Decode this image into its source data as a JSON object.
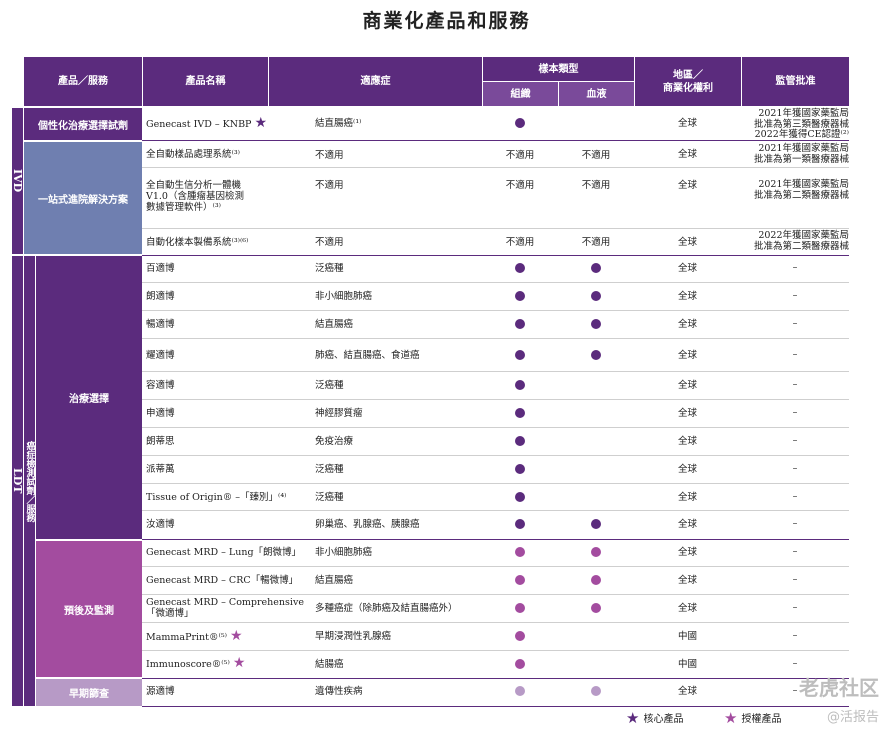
{
  "title": "商業化產品和服務",
  "headers": {
    "product_service": "產品／服務",
    "product_name": "產品名稱",
    "indication": "適應症",
    "sample_type": "樣本類型",
    "tissue": "組織",
    "blood": "血液",
    "region_line1": "地區／",
    "region_line2": "商業化權利",
    "approval": "監管批准"
  },
  "categories": {
    "ivd": "IVD",
    "ldt": "LDT",
    "ldt_sub": "癌症檢測試劑／服務",
    "personalized": "個性化治療選擇試劑",
    "onestop": "一站式進院解決方案",
    "therapy": "治療選擇",
    "prognosis": "預後及監測",
    "screening": "早期篩查"
  },
  "rows": [
    {
      "product": "Genecast IVD – KNBP",
      "star": "core",
      "indication": "結直腸癌⁽¹⁾",
      "region": "全球",
      "approval": [
        "2021年獲國家藥監局",
        "批准為第三類醫療器械",
        "2022年獲得CE認證⁽²⁾"
      ]
    },
    {
      "product": "全自動樣品處理系統⁽³⁾",
      "indication": "不適用",
      "tissue": "不適用",
      "blood": "不適用",
      "region": "全球",
      "approval": [
        "2021年獲國家藥監局",
        "批准為第一類醫療器械"
      ]
    },
    {
      "product_lines": [
        "全自動生信分析一體機",
        "V1.0（含腫瘤基因檢測",
        "數據管理軟件）⁽³⁾"
      ],
      "indication": "不適用",
      "tissue": "不適用",
      "blood": "不適用",
      "region": "全球",
      "approval": [
        "2021年獲國家藥監局",
        "批准為第二類醫療器械"
      ]
    },
    {
      "product": "自動化樣本製備系統⁽³⁾⁽⁶⁾",
      "indication": "不適用",
      "tissue": "不適用",
      "blood": "不適用",
      "region": "全球",
      "approval": [
        "2022年獲國家藥監局",
        "批准為第二類醫療器械"
      ]
    },
    {
      "product": "百適博",
      "indication": "泛癌種",
      "region": "全球",
      "approval": [
        "–"
      ]
    },
    {
      "product": "朗適博",
      "indication": "非小細胞肺癌",
      "region": "全球",
      "approval": [
        "–"
      ]
    },
    {
      "product": "暢適博",
      "indication": "結直腸癌",
      "region": "全球",
      "approval": [
        "–"
      ]
    },
    {
      "product": "耀適博",
      "indication": "肺癌、結直腸癌、食道癌",
      "region": "全球",
      "approval": [
        "–"
      ]
    },
    {
      "product": "容適博",
      "indication": "泛癌種",
      "region": "全球",
      "approval": [
        "–"
      ]
    },
    {
      "product": "申適博",
      "indication": "神經膠質瘤",
      "region": "全球",
      "approval": [
        "–"
      ]
    },
    {
      "product": "朗蒂思",
      "indication": "免疫治療",
      "region": "全球",
      "approval": [
        "–"
      ]
    },
    {
      "product": "派蒂萬",
      "indication": "泛癌種",
      "region": "全球",
      "approval": [
        "–"
      ]
    },
    {
      "product": "Tissue of Origin® –「臻別」⁽⁴⁾",
      "indication": "泛癌種",
      "region": "全球",
      "approval": [
        "–"
      ]
    },
    {
      "product": "汝適博",
      "indication": "卵巢癌、乳腺癌、胰腺癌",
      "region": "全球",
      "approval": [
        "–"
      ]
    },
    {
      "product": "Genecast MRD – Lung「朗微博」",
      "indication": "非小細胞肺癌",
      "region": "全球",
      "approval": [
        "–"
      ]
    },
    {
      "product": "Genecast MRD – CRC「暢微博」",
      "indication": "結直腸癌",
      "region": "全球",
      "approval": [
        "–"
      ]
    },
    {
      "product_lines": [
        "Genecast MRD – Comprehensive",
        "「微適博」"
      ],
      "indication": "多種癌症（除肺癌及結直腸癌外）",
      "region": "全球",
      "approval": [
        "–"
      ]
    },
    {
      "product": "MammaPrint®⁽⁵⁾",
      "star": "licensed",
      "indication": "早期浸潤性乳腺癌",
      "region": "中國",
      "approval": [
        "–"
      ]
    },
    {
      "product": "Immunoscore®⁽⁵⁾",
      "star": "licensed",
      "indication": "結腸癌",
      "region": "中國",
      "approval": [
        "–"
      ]
    },
    {
      "product": "源適博",
      "indication": "遺傳性疾病",
      "region": "全球",
      "approval": [
        "–"
      ]
    }
  ],
  "legend": {
    "core": "核心產品",
    "licensed": "授權產品"
  },
  "star_symbol": "★",
  "watermark": {
    "line1": "老虎社区",
    "line2": "@活报告"
  },
  "colors": {
    "primary": "#5b2b7d",
    "prognosis": "#a34c9f",
    "screening": "#b79ac6",
    "onestop": "#6f7fb0"
  }
}
